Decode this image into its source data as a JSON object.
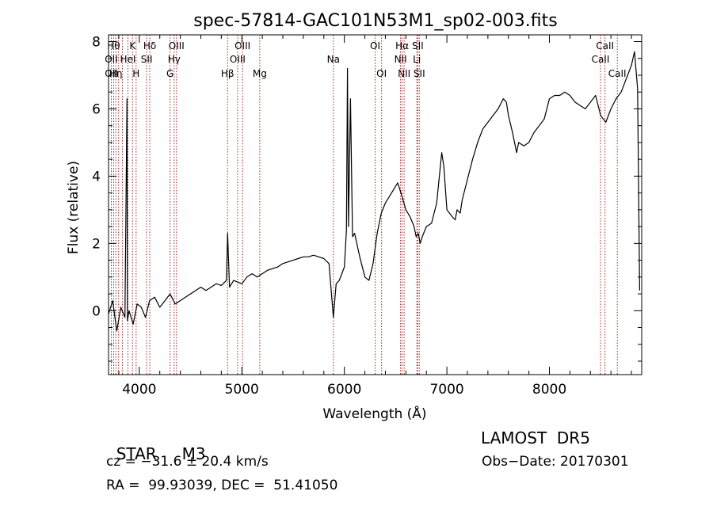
{
  "chart_data": {
    "type": "line",
    "title": "spec-57814-GAC101N53M1_sp02-003.fits",
    "xlabel": "Wavelength (Å)",
    "ylabel": "Flux (relative)",
    "xlim": [
      3700,
      8900
    ],
    "ylim": [
      -1.9,
      8.2
    ],
    "xticks": [
      4000,
      5000,
      6000,
      7000,
      8000
    ],
    "yticks": [
      0,
      2,
      4,
      6,
      8
    ],
    "grid": false,
    "series": [
      {
        "x": [
          3700,
          3740,
          3780,
          3820,
          3860,
          3880,
          3885,
          3900,
          3940,
          3980,
          4020,
          4060,
          4100,
          4150,
          4200,
          4250,
          4300,
          4350,
          4400,
          4450,
          4500,
          4550,
          4600,
          4650,
          4700,
          4750,
          4800,
          4850,
          4861,
          4880,
          4920,
          4960,
          5000,
          5050,
          5100,
          5150,
          5200,
          5250,
          5300,
          5350,
          5400,
          5450,
          5500,
          5550,
          5600,
          5650,
          5700,
          5750,
          5800,
          5850,
          5893,
          5920,
          5950,
          6000,
          6020,
          6030,
          6040,
          6060,
          6080,
          6100,
          6150,
          6200,
          6240,
          6280,
          6320,
          6360,
          6400,
          6440,
          6480,
          6520,
          6563,
          6600,
          6640,
          6680,
          6700,
          6720,
          6740,
          6760,
          6800,
          6850,
          6900,
          6950,
          6970,
          7000,
          7050,
          7080,
          7100,
          7130,
          7150,
          7200,
          7250,
          7300,
          7350,
          7400,
          7450,
          7500,
          7550,
          7580,
          7600,
          7640,
          7680,
          7700,
          7750,
          7800,
          7850,
          7900,
          7950,
          8000,
          8050,
          8100,
          8150,
          8200,
          8250,
          8300,
          8350,
          8400,
          8450,
          8500,
          8550,
          8600,
          8650,
          8700,
          8750,
          8800,
          8830,
          8860,
          8880
        ],
        "y": [
          -0.1,
          0.3,
          -0.6,
          0.1,
          -0.2,
          6.3,
          -0.3,
          0.0,
          -0.4,
          0.2,
          0.1,
          -0.2,
          0.3,
          0.4,
          0.1,
          0.3,
          0.5,
          0.2,
          0.3,
          0.4,
          0.5,
          0.6,
          0.7,
          0.6,
          0.7,
          0.8,
          0.75,
          0.9,
          2.3,
          0.7,
          0.9,
          0.85,
          0.8,
          1.0,
          1.1,
          1.0,
          1.1,
          1.2,
          1.25,
          1.3,
          1.4,
          1.45,
          1.5,
          1.55,
          1.6,
          1.6,
          1.65,
          1.6,
          1.55,
          1.4,
          -0.2,
          0.8,
          0.9,
          1.3,
          2.4,
          7.2,
          2.5,
          6.3,
          2.2,
          2.3,
          1.6,
          1.0,
          0.9,
          1.4,
          2.3,
          2.9,
          3.2,
          3.4,
          3.6,
          3.8,
          3.4,
          3.0,
          2.8,
          2.5,
          2.2,
          2.3,
          2.0,
          2.2,
          2.5,
          2.6,
          3.2,
          4.7,
          4.3,
          3.0,
          2.8,
          2.7,
          3.0,
          2.9,
          3.3,
          3.9,
          4.5,
          5.0,
          5.4,
          5.6,
          5.8,
          6.0,
          6.3,
          6.2,
          5.8,
          5.3,
          4.7,
          5.0,
          4.9,
          5.0,
          5.3,
          5.5,
          5.7,
          6.3,
          6.4,
          6.4,
          6.5,
          6.4,
          6.2,
          6.1,
          6.0,
          6.2,
          6.4,
          5.8,
          5.6,
          6.0,
          6.3,
          6.5,
          6.9,
          7.3,
          7.7,
          6.6,
          0.6
        ]
      }
    ],
    "lines": [
      {
        "wl": 3727,
        "label": "OII",
        "row": 1
      },
      {
        "wl": 3727,
        "label": "OII",
        "row": 2
      },
      {
        "wl": 3750,
        "label": "Hθ",
        "row": 0
      },
      {
        "wl": 3771,
        "label": "Hη",
        "row": 2
      },
      {
        "wl": 3798,
        "label": "",
        "row": -1
      },
      {
        "wl": 3835,
        "label": "",
        "row": -1
      },
      {
        "wl": 3889,
        "label": "HeI",
        "row": 1
      },
      {
        "wl": 3934,
        "label": "K",
        "row": 0
      },
      {
        "wl": 3969,
        "label": "H",
        "row": 2
      },
      {
        "wl": 4072,
        "label": "SII",
        "row": 1
      },
      {
        "wl": 4102,
        "label": "Hδ",
        "row": 0
      },
      {
        "wl": 4300,
        "label": "G",
        "row": 2
      },
      {
        "wl": 4340,
        "label": "Hγ",
        "row": 1
      },
      {
        "wl": 4363,
        "label": "OIII",
        "row": 0
      },
      {
        "wl": 4861,
        "label": "Hβ",
        "row": 2
      },
      {
        "wl": 4959,
        "label": "OIII",
        "row": 1
      },
      {
        "wl": 5007,
        "label": "OIII",
        "row": 0
      },
      {
        "wl": 5175,
        "label": "Mg",
        "row": 2
      },
      {
        "wl": 5893,
        "label": "Na",
        "row": 1
      },
      {
        "wl": 6300,
        "label": "OI",
        "row": 0
      },
      {
        "wl": 6363,
        "label": "OI",
        "row": 2
      },
      {
        "wl": 6548,
        "label": "NII",
        "row": 1
      },
      {
        "wl": 6563,
        "label": "Hα",
        "row": 0
      },
      {
        "wl": 6583,
        "label": "NII",
        "row": 2
      },
      {
        "wl": 6707,
        "label": "Li",
        "row": 1
      },
      {
        "wl": 6716,
        "label": "SII",
        "row": 0
      },
      {
        "wl": 6731,
        "label": "SII",
        "row": 2
      },
      {
        "wl": 8498,
        "label": "CaII",
        "row": 1
      },
      {
        "wl": 8542,
        "label": "CaII",
        "row": 0
      },
      {
        "wl": 8662,
        "label": "CaII",
        "row": 2
      }
    ]
  },
  "info": {
    "object_class": "STAR",
    "subclass": "M3",
    "survey": "LAMOST  DR5",
    "cz": "cz = −31.6 ± 20.4 km/s",
    "obs_date": "Obs−Date: 20170301",
    "coords": "RA =  99.93039, DEC =  51.41050"
  }
}
